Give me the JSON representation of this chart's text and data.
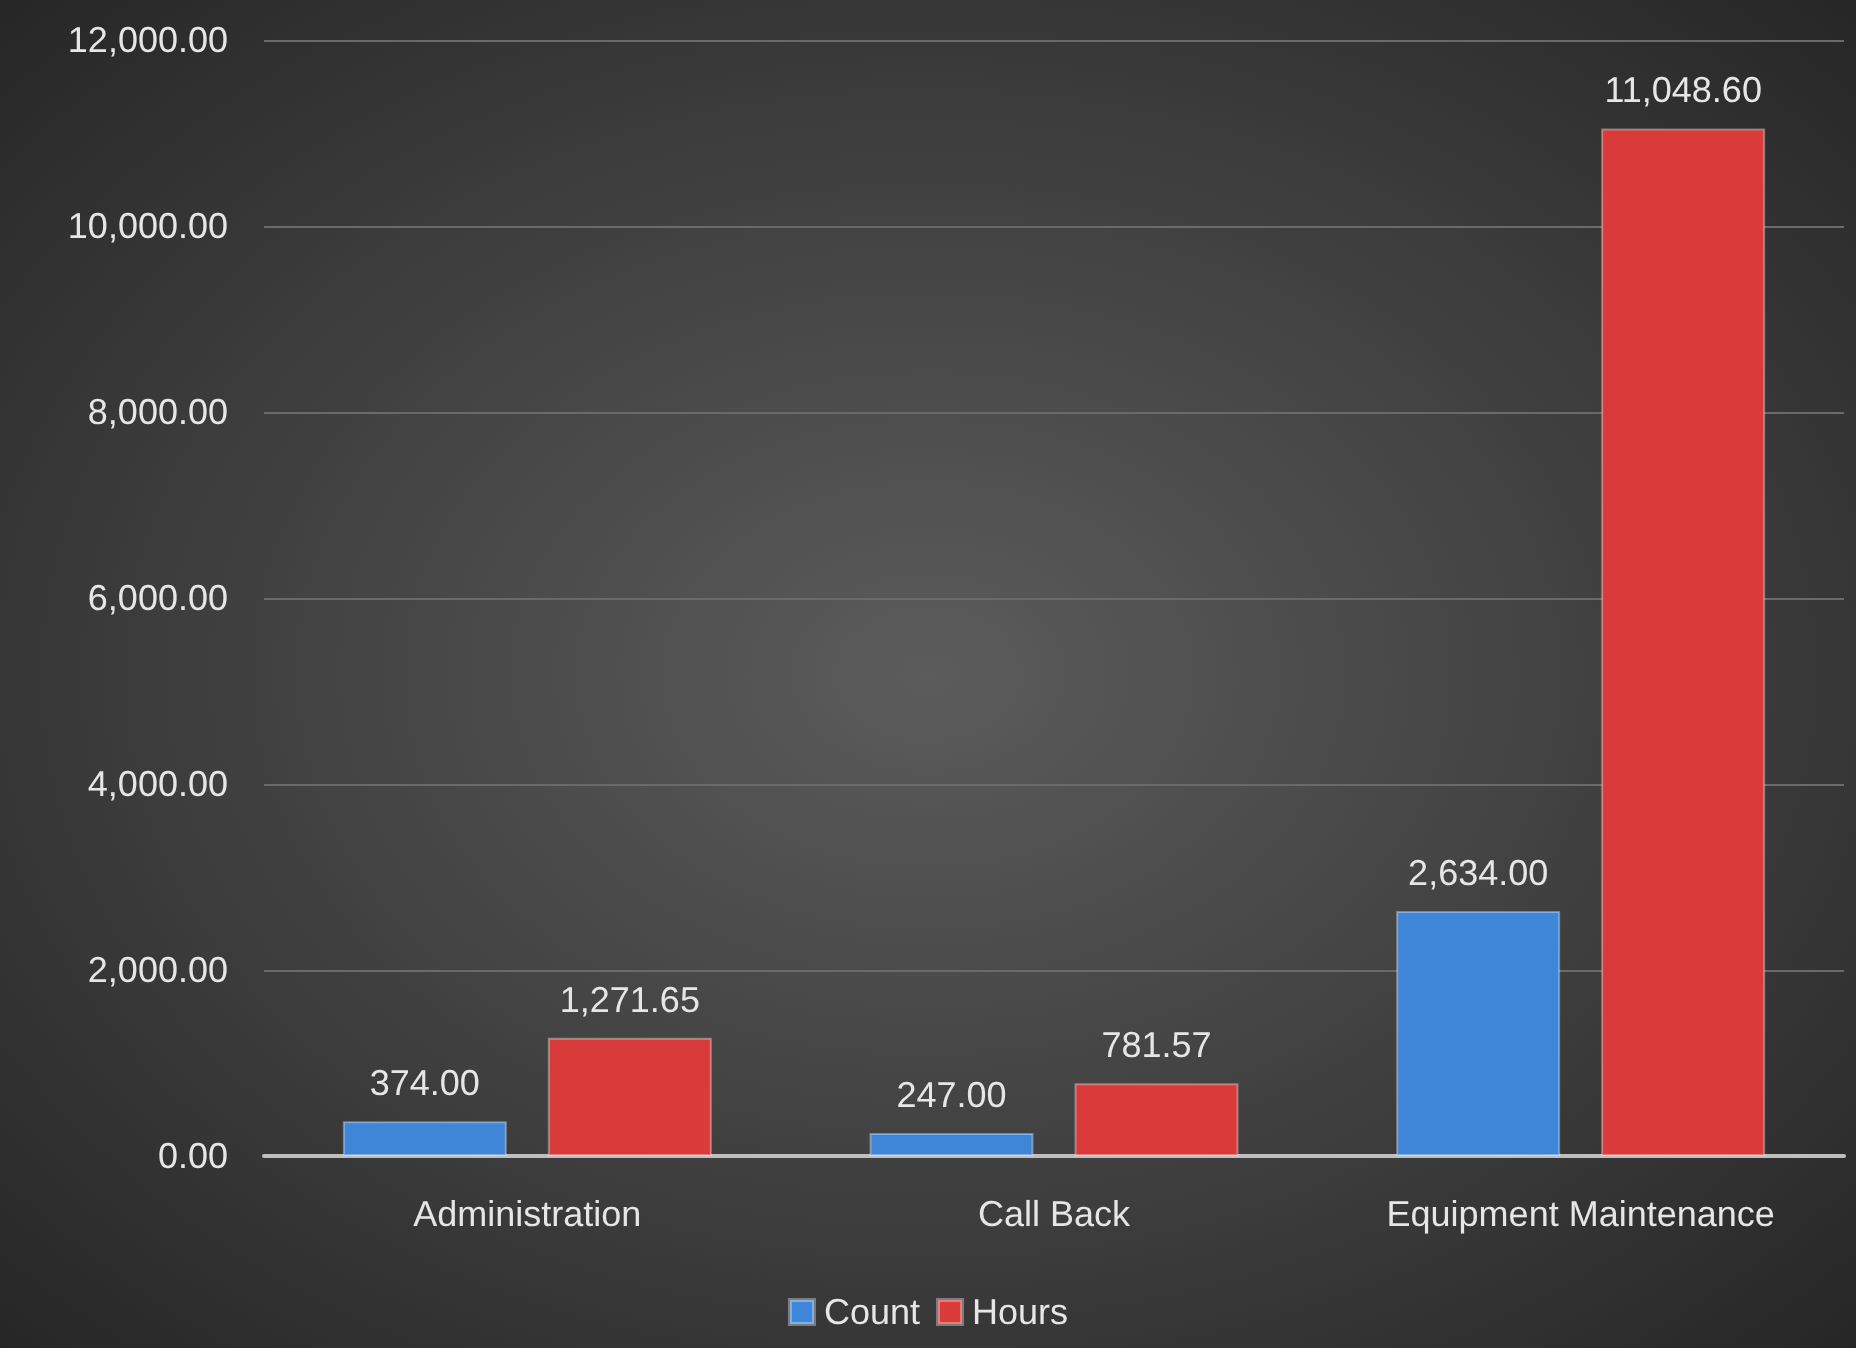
{
  "chart_data": {
    "type": "bar",
    "categories": [
      "Administration",
      "Call Back",
      "Equipment Maintenance"
    ],
    "series": [
      {
        "name": "Count",
        "color": "#3f86d8",
        "values": [
          374,
          247,
          2634
        ],
        "value_labels": [
          "374.00",
          "247.00",
          "2,634.00"
        ]
      },
      {
        "name": "Hours",
        "color": "#d93a3a",
        "values": [
          1271.65,
          781.57,
          11048.6
        ],
        "value_labels": [
          "1,271.65",
          "781.57",
          "11,048.60"
        ]
      }
    ],
    "ylim": [
      0,
      12000
    ],
    "yticks": [
      {
        "value": 0,
        "label": "0.00"
      },
      {
        "value": 2000,
        "label": "2,000.00"
      },
      {
        "value": 4000,
        "label": "4,000.00"
      },
      {
        "value": 6000,
        "label": "6,000.00"
      },
      {
        "value": 8000,
        "label": "8,000.00"
      },
      {
        "value": 10000,
        "label": "10,000.00"
      },
      {
        "value": 12000,
        "label": "12,000.00"
      }
    ],
    "grid": "y",
    "legend": "bottom"
  }
}
